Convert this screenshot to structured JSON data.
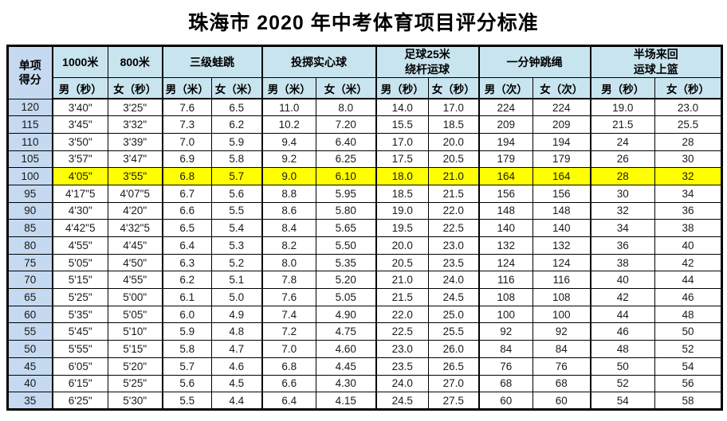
{
  "title": "珠海市 2020 年中考体育项目评分标准",
  "colors": {
    "header_bg": "#C8E4EF",
    "score_col_bg": "#C5D9F0",
    "highlight_bg": "#FFFF00",
    "border": "#000000"
  },
  "table": {
    "corner_header": "单项\n得分",
    "groups": [
      {
        "label": "1000米",
        "span": 1
      },
      {
        "label": "800米",
        "span": 1
      },
      {
        "label": "三级蛙跳",
        "span": 2
      },
      {
        "label": "投掷实心球",
        "span": 2
      },
      {
        "label": "足球25米\n绕杆运球",
        "span": 2
      },
      {
        "label": "一分钟跳绳",
        "span": 2
      },
      {
        "label": "半场来回\n运球上篮",
        "span": 2
      }
    ],
    "subheaders": [
      "男（秒）",
      "女（秒）",
      "男（米）",
      "女（米）",
      "男（米）",
      "女（米）",
      "男（秒）",
      "女（秒）",
      "男（次）",
      "女（次）",
      "男（秒）",
      "女（秒）"
    ],
    "rows": [
      {
        "score": "120",
        "highlight": false,
        "values": [
          "3'40\"",
          "3'25\"",
          "7.6",
          "6.5",
          "11.0",
          "8.0",
          "14.0",
          "17.0",
          "224",
          "224",
          "19.0",
          "23.0"
        ]
      },
      {
        "score": "115",
        "highlight": false,
        "values": [
          "3'45\"",
          "3'32\"",
          "7.3",
          "6.2",
          "10.2",
          "7.20",
          "15.5",
          "18.5",
          "209",
          "209",
          "21.5",
          "25.5"
        ]
      },
      {
        "score": "110",
        "highlight": false,
        "values": [
          "3'50\"",
          "3'39\"",
          "7.0",
          "5.9",
          "9.4",
          "6.40",
          "17.0",
          "20.0",
          "194",
          "194",
          "24",
          "28"
        ]
      },
      {
        "score": "105",
        "highlight": false,
        "values": [
          "3'57\"",
          "3'47\"",
          "6.9",
          "5.8",
          "9.2",
          "6.25",
          "17.5",
          "20.5",
          "179",
          "179",
          "26",
          "30"
        ]
      },
      {
        "score": "100",
        "highlight": true,
        "values": [
          "4'05\"",
          "3'55\"",
          "6.8",
          "5.7",
          "9.0",
          "6.10",
          "18.0",
          "21.0",
          "164",
          "164",
          "28",
          "32"
        ]
      },
      {
        "score": "95",
        "highlight": false,
        "values": [
          "4'17\"5",
          "4'07\"5",
          "6.7",
          "5.6",
          "8.8",
          "5.95",
          "18.5",
          "21.5",
          "156",
          "156",
          "30",
          "34"
        ]
      },
      {
        "score": "90",
        "highlight": false,
        "values": [
          "4'30\"",
          "4'20\"",
          "6.6",
          "5.5",
          "8.6",
          "5.80",
          "19.0",
          "22.0",
          "148",
          "148",
          "32",
          "36"
        ]
      },
      {
        "score": "85",
        "highlight": false,
        "values": [
          "4'42\"5",
          "4'32\"5",
          "6.5",
          "5.4",
          "8.4",
          "5.65",
          "19.5",
          "22.5",
          "140",
          "140",
          "34",
          "38"
        ]
      },
      {
        "score": "80",
        "highlight": false,
        "values": [
          "4'55\"",
          "4'45\"",
          "6.4",
          "5.3",
          "8.2",
          "5.50",
          "20.0",
          "23.0",
          "132",
          "132",
          "36",
          "40"
        ]
      },
      {
        "score": "75",
        "highlight": false,
        "values": [
          "5'05\"",
          "4'50\"",
          "6.3",
          "5.2",
          "8.0",
          "5.35",
          "20.5",
          "23.5",
          "124",
          "124",
          "38",
          "42"
        ]
      },
      {
        "score": "70",
        "highlight": false,
        "values": [
          "5'15\"",
          "4'55\"",
          "6.2",
          "5.1",
          "7.8",
          "5.20",
          "21.0",
          "24.0",
          "116",
          "116",
          "40",
          "44"
        ]
      },
      {
        "score": "65",
        "highlight": false,
        "values": [
          "5'25\"",
          "5'00\"",
          "6.1",
          "5.0",
          "7.6",
          "5.05",
          "21.5",
          "24.5",
          "108",
          "108",
          "42",
          "46"
        ]
      },
      {
        "score": "60",
        "highlight": false,
        "values": [
          "5'35\"",
          "5'05\"",
          "6.0",
          "4.9",
          "7.4",
          "4.90",
          "22.0",
          "25.0",
          "100",
          "100",
          "44",
          "48"
        ]
      },
      {
        "score": "55",
        "highlight": false,
        "values": [
          "5'45\"",
          "5'10\"",
          "5.9",
          "4.8",
          "7.2",
          "4.75",
          "22.5",
          "25.5",
          "92",
          "92",
          "46",
          "50"
        ]
      },
      {
        "score": "50",
        "highlight": false,
        "values": [
          "5'55\"",
          "5'15\"",
          "5.8",
          "4.7",
          "7.0",
          "4.60",
          "23.0",
          "26.0",
          "84",
          "84",
          "48",
          "52"
        ]
      },
      {
        "score": "45",
        "highlight": false,
        "values": [
          "6'05\"",
          "5'20\"",
          "5.7",
          "4.6",
          "6.8",
          "4.45",
          "23.5",
          "26.5",
          "76",
          "76",
          "50",
          "54"
        ]
      },
      {
        "score": "40",
        "highlight": false,
        "values": [
          "6'15\"",
          "5'25\"",
          "5.6",
          "4.5",
          "6.6",
          "4.30",
          "24.0",
          "27.0",
          "68",
          "68",
          "52",
          "56"
        ]
      },
      {
        "score": "35",
        "highlight": false,
        "values": [
          "6'25\"",
          "5'30\"",
          "5.5",
          "4.4",
          "6.4",
          "4.15",
          "24.5",
          "27.5",
          "60",
          "60",
          "54",
          "58"
        ]
      }
    ]
  }
}
